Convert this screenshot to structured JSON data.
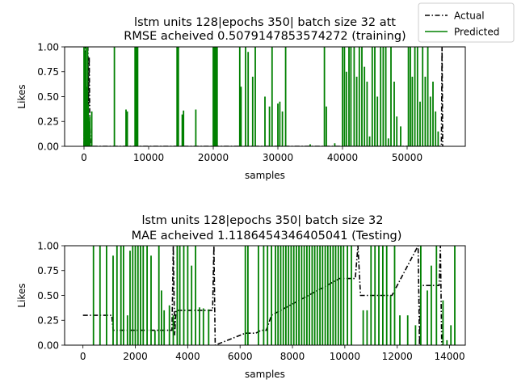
{
  "legend": {
    "entries": [
      {
        "label": "Actual",
        "color": "#000000",
        "style": "dashdot"
      },
      {
        "label": "Predicted",
        "color": "#008000",
        "style": "solid"
      }
    ]
  },
  "chart_data": [
    {
      "type": "line",
      "title": "lstm units 128|epochs 350| batch size 32 att",
      "subtitle": "RMSE acheived 0.5079147853574272 (training)",
      "xlabel": "samples",
      "ylabel": "Likes",
      "xlim": [
        -3000,
        59000
      ],
      "ylim": [
        0,
        1
      ],
      "xticks": [
        0,
        10000,
        20000,
        30000,
        40000,
        50000
      ],
      "yticks": [
        0.0,
        0.25,
        0.5,
        0.75,
        1.0
      ],
      "ytick_labels": [
        "0.00",
        "0.25",
        "0.50",
        "0.75",
        "1.00"
      ],
      "grid": false,
      "series": [
        {
          "name": "Actual",
          "color": "#000000",
          "x": [
            0,
            200,
            600,
            700,
            800,
            900,
            1000,
            1100,
            55300,
            55400,
            55500,
            55600
          ],
          "y": [
            0,
            1,
            1,
            0.4,
            0.9,
            0.2,
            0,
            0,
            0,
            1,
            0,
            0
          ]
        },
        {
          "name": "Predicted",
          "color": "#008000",
          "spikes": [
            [
              0,
              1.0
            ],
            [
              150,
              0.95
            ],
            [
              300,
              1.0
            ],
            [
              450,
              0.6
            ],
            [
              550,
              1.0
            ],
            [
              650,
              0.42
            ],
            [
              750,
              0.25
            ],
            [
              900,
              0.3
            ],
            [
              1200,
              0.35
            ],
            [
              4700,
              1.0
            ],
            [
              6500,
              0.37
            ],
            [
              6700,
              0.35
            ],
            [
              7900,
              1.0
            ],
            [
              8100,
              1.0
            ],
            [
              8300,
              1.0
            ],
            [
              14400,
              1.0
            ],
            [
              14600,
              1.0
            ],
            [
              15200,
              0.32
            ],
            [
              15400,
              0.36
            ],
            [
              17300,
              0.37
            ],
            [
              20000,
              1.0
            ],
            [
              20200,
              1.0
            ],
            [
              20400,
              1.0
            ],
            [
              20600,
              1.0
            ],
            [
              24100,
              1.0
            ],
            [
              24300,
              0.6
            ],
            [
              25000,
              1.0
            ],
            [
              25400,
              0.95
            ],
            [
              26100,
              0.7
            ],
            [
              26500,
              1.0
            ],
            [
              28000,
              0.5
            ],
            [
              28700,
              0.4
            ],
            [
              29100,
              1.0
            ],
            [
              30000,
              0.43
            ],
            [
              30300,
              0.45
            ],
            [
              30700,
              0.35
            ],
            [
              31200,
              1.0
            ],
            [
              35000,
              0.02
            ],
            [
              37200,
              1.0
            ],
            [
              37500,
              0.4
            ],
            [
              38800,
              0.03
            ],
            [
              40000,
              1.0
            ],
            [
              40300,
              1.0
            ],
            [
              40600,
              0.75
            ],
            [
              41000,
              1.0
            ],
            [
              41300,
              1.0
            ],
            [
              41800,
              1.0
            ],
            [
              42200,
              0.7
            ],
            [
              42600,
              1.0
            ],
            [
              43000,
              1.0
            ],
            [
              43400,
              0.8
            ],
            [
              43800,
              0.65
            ],
            [
              44200,
              0.1
            ],
            [
              44600,
              1.0
            ],
            [
              45000,
              1.0
            ],
            [
              45400,
              0.5
            ],
            [
              45900,
              1.0
            ],
            [
              46300,
              1.0
            ],
            [
              46700,
              1.0
            ],
            [
              47100,
              0.08
            ],
            [
              47500,
              1.0
            ],
            [
              48000,
              0.65
            ],
            [
              48400,
              0.3
            ],
            [
              49000,
              0.2
            ],
            [
              50200,
              1.0
            ],
            [
              50500,
              1.0
            ],
            [
              50800,
              0.7
            ],
            [
              51200,
              1.0
            ],
            [
              51600,
              1.0
            ],
            [
              52000,
              0.45
            ],
            [
              52400,
              1.0
            ],
            [
              52800,
              0.7
            ],
            [
              53200,
              1.0
            ],
            [
              53600,
              0.5
            ],
            [
              54000,
              0.65
            ],
            [
              54400,
              0.35
            ],
            [
              54800,
              0.15
            ]
          ]
        }
      ]
    },
    {
      "type": "line",
      "title": "lstm units 128|epochs 350| batch size 32",
      "subtitle": "MAE acheived 1.1186454346405041 (Testing)",
      "xlabel": "samples",
      "ylabel": "Likes",
      "xlim": [
        -700,
        14600
      ],
      "ylim": [
        0,
        1
      ],
      "xticks": [
        0,
        2000,
        4000,
        6000,
        8000,
        10000,
        12000,
        14000
      ],
      "yticks": [
        0.0,
        0.25,
        0.5,
        0.75,
        1.0
      ],
      "ytick_labels": [
        "0.00",
        "0.25",
        "0.50",
        "0.75",
        "1.00"
      ],
      "grid": false,
      "series": [
        {
          "name": "Actual",
          "color": "#000000",
          "x": [
            0,
            1100,
            1150,
            3400,
            3450,
            3500,
            3550,
            4950,
            5000,
            5050,
            6200,
            6600,
            6800,
            7000,
            7200,
            9800,
            10400,
            10500,
            10600,
            11800,
            12800,
            12850,
            12900,
            13600,
            13650,
            13700
          ],
          "y": [
            0.3,
            0.3,
            0.15,
            0.15,
            1.0,
            0.1,
            0.35,
            0.35,
            1.0,
            0.0,
            0.12,
            0.12,
            0.15,
            0.15,
            0.3,
            0.67,
            0.67,
            1.0,
            0.5,
            0.5,
            1.0,
            0.0,
            0.6,
            0.6,
            1.0,
            0.0
          ]
        },
        {
          "name": "Predicted",
          "color": "#008000",
          "spikes": [
            [
              400,
              1.0
            ],
            [
              650,
              1.0
            ],
            [
              900,
              1.0
            ],
            [
              1150,
              0.9
            ],
            [
              1300,
              1.0
            ],
            [
              1450,
              1.0
            ],
            [
              1550,
              1.0
            ],
            [
              1700,
              0.3
            ],
            [
              1800,
              0.95
            ],
            [
              1900,
              1.0
            ],
            [
              2000,
              1.0
            ],
            [
              2100,
              1.0
            ],
            [
              2200,
              1.0
            ],
            [
              2300,
              1.0
            ],
            [
              2450,
              1.0
            ],
            [
              2600,
              0.9
            ],
            [
              2750,
              0.15
            ],
            [
              2900,
              1.0
            ],
            [
              3000,
              0.55
            ],
            [
              3100,
              0.35
            ],
            [
              3300,
              0.4
            ],
            [
              3450,
              0.3
            ],
            [
              3600,
              1.0
            ],
            [
              3700,
              1.0
            ],
            [
              3850,
              1.0
            ],
            [
              4000,
              1.0
            ],
            [
              4150,
              0.8
            ],
            [
              4300,
              1.0
            ],
            [
              4450,
              0.38
            ],
            [
              4600,
              0.37
            ],
            [
              4800,
              0.36
            ],
            [
              6200,
              1.0
            ],
            [
              6300,
              1.0
            ],
            [
              6700,
              1.0
            ],
            [
              6900,
              1.0
            ],
            [
              7050,
              1.0
            ],
            [
              7200,
              1.0
            ],
            [
              7350,
              1.0
            ],
            [
              7450,
              1.0
            ],
            [
              7550,
              1.0
            ],
            [
              7650,
              1.0
            ],
            [
              7750,
              1.0
            ],
            [
              7850,
              1.0
            ],
            [
              7950,
              1.0
            ],
            [
              8050,
              1.0
            ],
            [
              8150,
              1.0
            ],
            [
              8250,
              1.0
            ],
            [
              8350,
              1.0
            ],
            [
              8450,
              1.0
            ],
            [
              8550,
              1.0
            ],
            [
              8650,
              1.0
            ],
            [
              8750,
              1.0
            ],
            [
              8850,
              1.0
            ],
            [
              8950,
              1.0
            ],
            [
              9050,
              1.0
            ],
            [
              9150,
              1.0
            ],
            [
              9250,
              1.0
            ],
            [
              9350,
              1.0
            ],
            [
              9450,
              1.0
            ],
            [
              9550,
              1.0
            ],
            [
              9650,
              1.0
            ],
            [
              9750,
              1.0
            ],
            [
              9850,
              1.0
            ],
            [
              9950,
              1.0
            ],
            [
              10100,
              1.0
            ],
            [
              10250,
              1.0
            ],
            [
              10700,
              0.35
            ],
            [
              10850,
              0.35
            ],
            [
              11000,
              1.0
            ],
            [
              11150,
              1.0
            ],
            [
              11300,
              1.0
            ],
            [
              11450,
              1.0
            ],
            [
              11600,
              1.0
            ],
            [
              11750,
              0.5
            ],
            [
              11900,
              1.0
            ],
            [
              12100,
              0.3
            ],
            [
              12400,
              0.3
            ],
            [
              12700,
              0.2
            ],
            [
              12900,
              1.0
            ],
            [
              13150,
              0.55
            ],
            [
              13300,
              0.8
            ],
            [
              13500,
              1.0
            ],
            [
              13750,
              0.45
            ],
            [
              13900,
              0.05
            ],
            [
              14050,
              0.2
            ],
            [
              14200,
              1.0
            ]
          ]
        }
      ]
    }
  ]
}
